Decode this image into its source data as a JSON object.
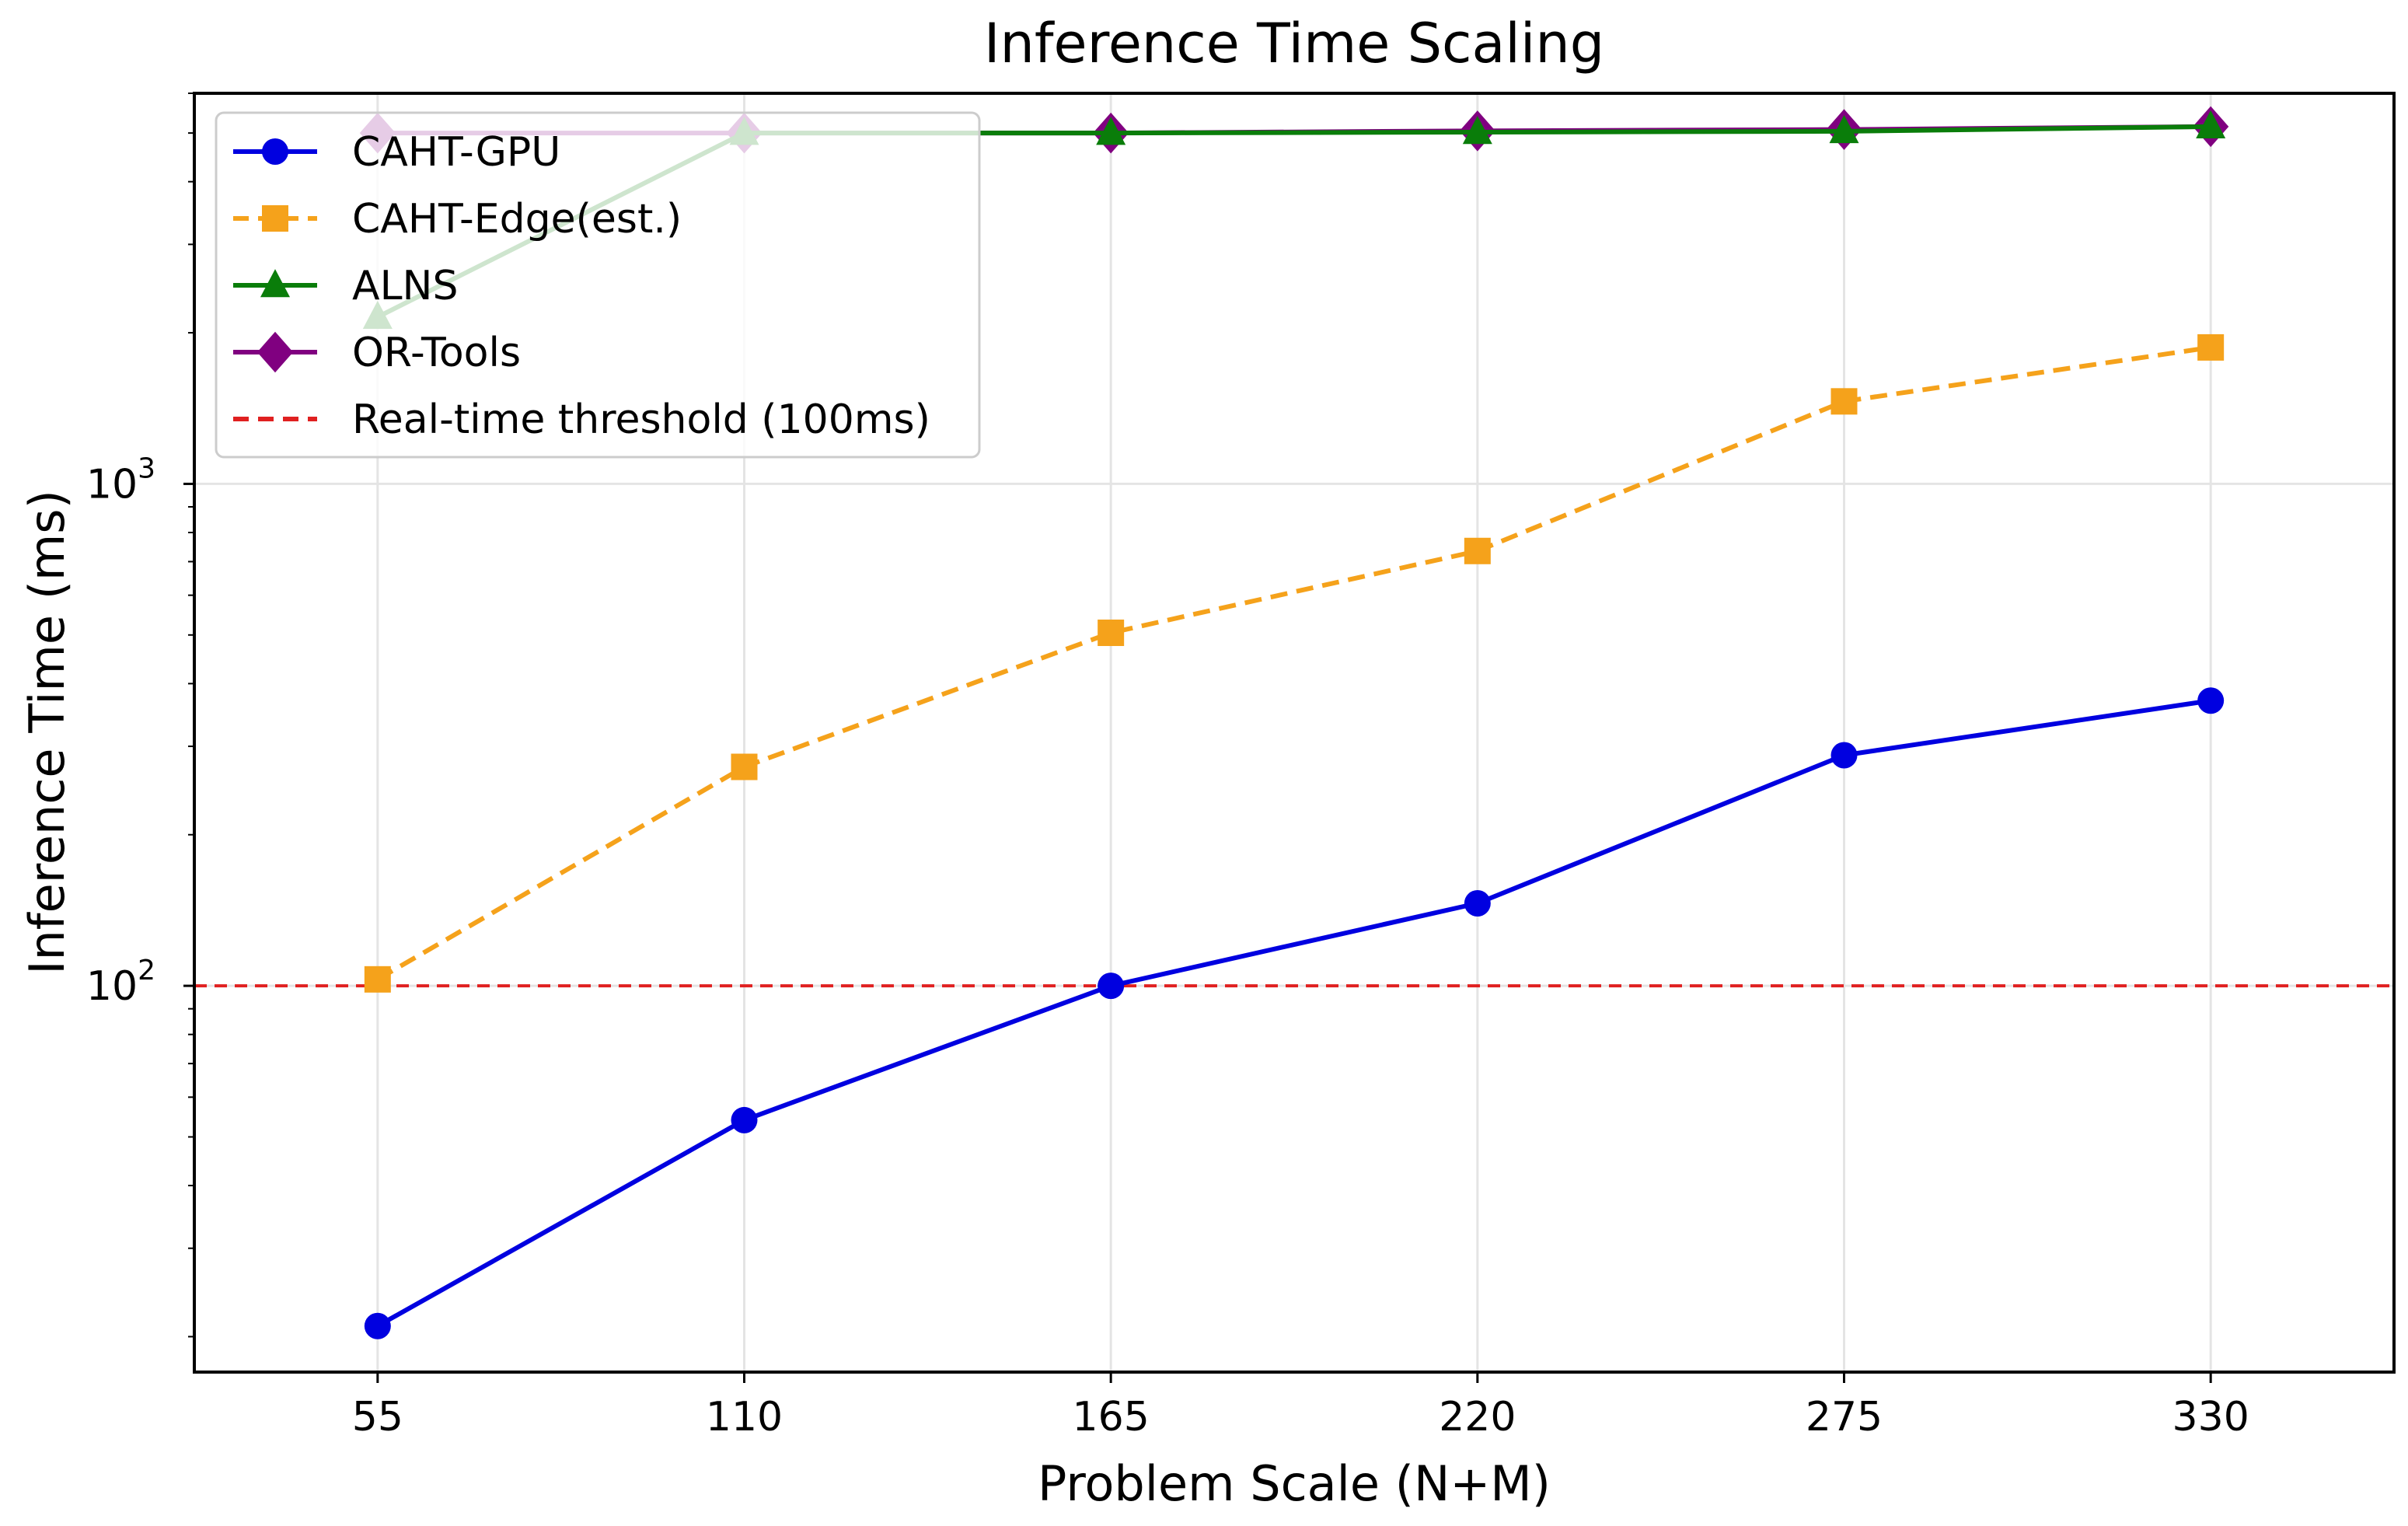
{
  "chart_data": {
    "type": "line",
    "title": "Inference Time Scaling",
    "xlabel": "Problem Scale (N+M)",
    "ylabel": "Inference Time (ms)",
    "x": [
      55,
      110,
      165,
      220,
      275,
      330
    ],
    "x_tick_labels": [
      "55",
      "110",
      "165",
      "220",
      "275",
      "330"
    ],
    "y_scale": "log",
    "ylim": [
      17,
      6000
    ],
    "y_tick_labels": [
      {
        "value": 100,
        "base": "10",
        "exp": "2"
      },
      {
        "value": 1000,
        "base": "10",
        "exp": "3"
      }
    ],
    "grid": true,
    "legend_position": "upper-left",
    "series": [
      {
        "name": "CAHT-GPU",
        "color": "#0000e0",
        "style": "solid",
        "marker": "circle",
        "values": [
          21,
          54,
          100,
          146,
          288,
          370
        ]
      },
      {
        "name": "CAHT-Edge(est.)",
        "color": "#f5a21b",
        "style": "dashed",
        "marker": "square",
        "values": [
          103,
          273,
          505,
          735,
          1460,
          1870
        ]
      },
      {
        "name": "ALNS",
        "color": "#0a7d0a",
        "style": "solid",
        "marker": "triangle",
        "values": [
          2150,
          5000,
          5000,
          5020,
          5040,
          5150
        ]
      },
      {
        "name": "OR-Tools",
        "color": "#800080",
        "style": "solid",
        "marker": "diamond",
        "values": [
          5000,
          5000,
          5000,
          5050,
          5080,
          5150
        ]
      }
    ],
    "reference_lines": [
      {
        "name": "Real-time threshold (100ms)",
        "y": 100,
        "color": "#e02020",
        "style": "dashed"
      }
    ]
  }
}
